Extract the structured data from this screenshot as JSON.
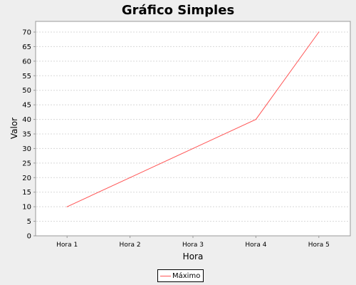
{
  "chart_data": {
    "type": "line",
    "title": "Gráfico Simples",
    "xlabel": "Hora",
    "ylabel": "Valor",
    "categories": [
      "Hora 1",
      "Hora 2",
      "Hora 3",
      "Hora 4",
      "Hora 5"
    ],
    "series": [
      {
        "name": "Máximo",
        "values": [
          10,
          20,
          30,
          40,
          70
        ],
        "color": "#ff5555"
      }
    ],
    "ylim": [
      0,
      70
    ],
    "yticks": [
      0,
      5,
      10,
      15,
      20,
      25,
      30,
      35,
      40,
      45,
      50,
      55,
      60,
      65,
      70
    ],
    "grid": true,
    "legend_position": "bottom"
  }
}
